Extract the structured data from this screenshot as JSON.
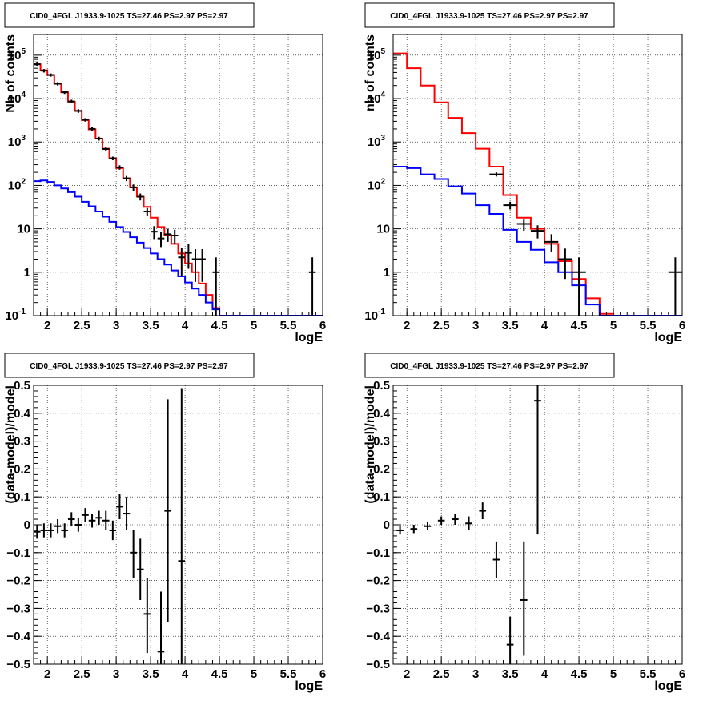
{
  "chart_data": [
    {
      "type": "line",
      "title": "CID0_4FGL J1933.9-1025 TS=27.46 PS=2.97 PS=2.97",
      "xlabel": "logE",
      "ylabel": "Nb of counts",
      "xlim": [
        1.8,
        6.0
      ],
      "ylim": [
        0.1,
        300000
      ],
      "yscale": "log",
      "grid": true,
      "x_ticks": [
        "2",
        "2.5",
        "3",
        "3.5",
        "4",
        "4.5",
        "5",
        "5.5",
        "6"
      ],
      "y_ticks": [
        "10^-1",
        "1",
        "10",
        "10^2",
        "10^3",
        "10^4",
        "10^5"
      ],
      "bin_edges": [
        1.8,
        1.9,
        2.0,
        2.1,
        2.2,
        2.3,
        2.4,
        2.5,
        2.6,
        2.7,
        2.8,
        2.9,
        3.0,
        3.1,
        3.2,
        3.3,
        3.4,
        3.5,
        3.6,
        3.7,
        3.8,
        3.9,
        4.0,
        4.1,
        4.2,
        4.3,
        4.4,
        4.5,
        4.6,
        4.7,
        4.8,
        4.9,
        5.0,
        5.1,
        5.2,
        5.3,
        5.4,
        5.5,
        5.6,
        5.7,
        5.8,
        5.9,
        6.0
      ],
      "series": [
        {
          "color": "#ff0000",
          "values": [
            62000,
            45000,
            35000,
            22000,
            14000,
            8500,
            5200,
            3200,
            1950,
            1200,
            700,
            420,
            250,
            145,
            90,
            55,
            32,
            18,
            11,
            7.2,
            4.5,
            2.7,
            1.6,
            1,
            0.55,
            0.3,
            0.15,
            0.1,
            0.1,
            0.1,
            0.1,
            0.1,
            0.1,
            0.1,
            0.1,
            0.1,
            0.1,
            0.1,
            0.1,
            0.1,
            0.1,
            0.1
          ]
        },
        {
          "color": "#0000ff",
          "values": [
            125,
            130,
            120,
            100,
            85,
            70,
            55,
            42,
            33,
            25,
            19,
            14.5,
            11,
            8.5,
            6.4,
            4.8,
            3.6,
            2.7,
            2.0,
            1.5,
            1.1,
            0.8,
            0.58,
            0.42,
            0.3,
            0.2,
            0.14,
            0.1,
            0.1,
            0.1,
            0.1,
            0.1,
            0.1,
            0.1,
            0.1,
            0.1,
            0.1,
            0.1,
            0.1,
            0.1,
            0.1,
            0.1
          ]
        }
      ],
      "points": [
        {
          "x": 1.85,
          "y": 62000,
          "lo": 56000,
          "hi": 68000
        },
        {
          "x": 1.95,
          "y": 44000,
          "lo": 40000,
          "hi": 48000
        },
        {
          "x": 2.05,
          "y": 35000,
          "lo": 32000,
          "hi": 38000
        },
        {
          "x": 2.15,
          "y": 22000,
          "lo": 20000,
          "hi": 24000
        },
        {
          "x": 2.25,
          "y": 14000,
          "lo": 12800,
          "hi": 15200
        },
        {
          "x": 2.35,
          "y": 8600,
          "lo": 7800,
          "hi": 9400
        },
        {
          "x": 2.45,
          "y": 5200,
          "lo": 4700,
          "hi": 5700
        },
        {
          "x": 2.55,
          "y": 3250,
          "lo": 2950,
          "hi": 3550
        },
        {
          "x": 2.65,
          "y": 2000,
          "lo": 1800,
          "hi": 2200
        },
        {
          "x": 2.75,
          "y": 1200,
          "lo": 1080,
          "hi": 1320
        },
        {
          "x": 2.85,
          "y": 690,
          "lo": 620,
          "hi": 760
        },
        {
          "x": 2.95,
          "y": 420,
          "lo": 380,
          "hi": 460
        },
        {
          "x": 3.05,
          "y": 260,
          "lo": 230,
          "hi": 290
        },
        {
          "x": 3.15,
          "y": 145,
          "lo": 125,
          "hi": 165
        },
        {
          "x": 3.25,
          "y": 90,
          "lo": 75,
          "hi": 105
        },
        {
          "x": 3.35,
          "y": 55,
          "lo": 45,
          "hi": 65
        },
        {
          "x": 3.45,
          "y": 25,
          "lo": 20,
          "hi": 30
        },
        {
          "x": 3.55,
          "y": 8.6,
          "lo": 5.8,
          "hi": 11.5
        },
        {
          "x": 3.65,
          "y": 6,
          "lo": 3.8,
          "hi": 8.5
        },
        {
          "x": 3.75,
          "y": 7.5,
          "lo": 5,
          "hi": 10
        },
        {
          "x": 3.85,
          "y": 7,
          "lo": 4.5,
          "hi": 9.5
        },
        {
          "x": 3.95,
          "y": 2.2,
          "lo": 0.8,
          "hi": 3.6
        },
        {
          "x": 4.05,
          "y": 2.8,
          "lo": 1.2,
          "hi": 4.5
        },
        {
          "x": 4.15,
          "y": 2,
          "lo": 0.6,
          "hi": 3.4
        },
        {
          "x": 4.25,
          "y": 2,
          "lo": 0.6,
          "hi": 3.4
        },
        {
          "x": 4.45,
          "y": 1,
          "lo": 0.1,
          "hi": 2.2
        },
        {
          "x": 5.85,
          "y": 1,
          "lo": 0.1,
          "hi": 2.2
        }
      ]
    },
    {
      "type": "line",
      "title": "CID0_4FGL J1933.9-1025 TS=27.46 PS=2.97 PS=2.97",
      "xlabel": "logE",
      "ylabel": "nb of counts",
      "xlim": [
        1.8,
        6.0
      ],
      "ylim": [
        0.1,
        300000
      ],
      "yscale": "log",
      "grid": true,
      "x_ticks": [
        "2",
        "2.5",
        "3",
        "3.5",
        "4",
        "4.5",
        "5",
        "5.5",
        "6"
      ],
      "y_ticks": [
        "10^-1",
        "1",
        "10",
        "10^2",
        "10^3",
        "10^4",
        "10^5"
      ],
      "bin_edges": [
        1.8,
        2.0,
        2.2,
        2.4,
        2.6,
        2.8,
        3.0,
        3.2,
        3.4,
        3.6,
        3.8,
        4.0,
        4.2,
        4.4,
        4.6,
        4.8,
        5.0,
        5.2,
        5.4,
        5.6,
        5.8,
        6.0
      ],
      "series": [
        {
          "color": "#ff0000",
          "values": [
            110000,
            50000,
            20000,
            8200,
            3600,
            1600,
            700,
            270,
            60,
            18,
            10,
            4.5,
            1.8,
            0.7,
            0.25,
            0.11,
            0.1,
            0.1,
            0.1,
            0.1,
            0.1
          ]
        },
        {
          "color": "#0000ff",
          "values": [
            270,
            250,
            180,
            140,
            95,
            65,
            35,
            22,
            9.5,
            5,
            3.3,
            1.7,
            1,
            0.5,
            0.18,
            0.1,
            0.1,
            0.1,
            0.1,
            0.1,
            0.1
          ]
        }
      ],
      "points": [
        {
          "x": 3.3,
          "y": 180,
          "lo": 160,
          "hi": 200
        },
        {
          "x": 3.5,
          "y": 35,
          "lo": 28,
          "hi": 42
        },
        {
          "x": 3.7,
          "y": 13,
          "lo": 9,
          "hi": 17
        },
        {
          "x": 3.9,
          "y": 9,
          "lo": 6,
          "hi": 12
        },
        {
          "x": 4.1,
          "y": 5,
          "lo": 3,
          "hi": 7.5
        },
        {
          "x": 4.3,
          "y": 2,
          "lo": 0.7,
          "hi": 3.5
        },
        {
          "x": 4.5,
          "y": 1,
          "lo": 0.1,
          "hi": 2.2
        },
        {
          "x": 5.9,
          "y": 1,
          "lo": 0.1,
          "hi": 2.2
        }
      ]
    },
    {
      "type": "scatter",
      "title": "CID0_4FGL J1933.9-1025 TS=27.46 PS=2.97 PS=2.97",
      "xlabel": "logE",
      "ylabel": "(data-model)/model",
      "xlim": [
        1.8,
        6.0
      ],
      "ylim": [
        -0.5,
        0.5
      ],
      "grid": true,
      "x_ticks": [
        "2",
        "2.5",
        "3",
        "3.5",
        "4",
        "4.5",
        "5",
        "5.5",
        "6"
      ],
      "y_ticks": [
        "-0.5",
        "-0.4",
        "-0.3",
        "-0.2",
        "-0.1",
        "0",
        "0.1",
        "0.2",
        "0.3",
        "0.4",
        "0.5"
      ],
      "points": [
        {
          "x": 1.85,
          "y": -0.025,
          "lo": -0.05,
          "hi": 0.0
        },
        {
          "x": 1.95,
          "y": -0.02,
          "lo": -0.045,
          "hi": 0.005
        },
        {
          "x": 2.05,
          "y": -0.02,
          "lo": -0.045,
          "hi": 0.005
        },
        {
          "x": 2.15,
          "y": -0.005,
          "lo": -0.03,
          "hi": 0.02
        },
        {
          "x": 2.25,
          "y": -0.02,
          "lo": -0.045,
          "hi": 0.005
        },
        {
          "x": 2.35,
          "y": 0.02,
          "lo": -0.005,
          "hi": 0.045
        },
        {
          "x": 2.45,
          "y": 0.0,
          "lo": -0.025,
          "hi": 0.025
        },
        {
          "x": 2.55,
          "y": 0.035,
          "lo": 0.01,
          "hi": 0.06
        },
        {
          "x": 2.65,
          "y": 0.015,
          "lo": -0.01,
          "hi": 0.04
        },
        {
          "x": 2.75,
          "y": 0.025,
          "lo": 0.0,
          "hi": 0.05
        },
        {
          "x": 2.85,
          "y": 0.015,
          "lo": -0.02,
          "hi": 0.05
        },
        {
          "x": 2.95,
          "y": -0.02,
          "lo": -0.055,
          "hi": 0.015
        },
        {
          "x": 3.05,
          "y": 0.065,
          "lo": 0.02,
          "hi": 0.11
        },
        {
          "x": 3.15,
          "y": 0.04,
          "lo": -0.02,
          "hi": 0.1
        },
        {
          "x": 3.25,
          "y": -0.1,
          "lo": -0.19,
          "hi": -0.02
        },
        {
          "x": 3.35,
          "y": -0.16,
          "lo": -0.27,
          "hi": -0.05
        },
        {
          "x": 3.45,
          "y": -0.32,
          "lo": -0.46,
          "hi": -0.19
        },
        {
          "x": 3.65,
          "y": -0.455,
          "lo": -0.5,
          "hi": -0.24
        },
        {
          "x": 3.75,
          "y": 0.05,
          "lo": -0.35,
          "hi": 0.45
        },
        {
          "x": 3.95,
          "y": -0.13,
          "lo": -0.5,
          "hi": 0.49
        }
      ]
    },
    {
      "type": "scatter",
      "title": "CID0_4FGL J1933.9-1025 TS=27.46 PS=2.97 PS=2.97",
      "xlabel": "logE",
      "ylabel": "(data-model)/model",
      "xlim": [
        1.8,
        6.0
      ],
      "ylim": [
        -0.5,
        0.5
      ],
      "grid": true,
      "x_ticks": [
        "2",
        "2.5",
        "3",
        "3.5",
        "4",
        "4.5",
        "5",
        "5.5",
        "6"
      ],
      "y_ticks": [
        "-0.5",
        "-0.4",
        "-0.3",
        "-0.2",
        "-0.1",
        "0",
        "0.1",
        "0.2",
        "0.3",
        "0.4",
        "0.5"
      ],
      "points": [
        {
          "x": 1.9,
          "y": -0.02,
          "lo": -0.035,
          "hi": -0.005
        },
        {
          "x": 2.1,
          "y": -0.015,
          "lo": -0.03,
          "hi": 0.0
        },
        {
          "x": 2.3,
          "y": -0.005,
          "lo": -0.02,
          "hi": 0.01
        },
        {
          "x": 2.5,
          "y": 0.015,
          "lo": 0.0,
          "hi": 0.03
        },
        {
          "x": 2.7,
          "y": 0.02,
          "lo": 0.0,
          "hi": 0.04
        },
        {
          "x": 2.9,
          "y": 0.005,
          "lo": -0.02,
          "hi": 0.03
        },
        {
          "x": 3.1,
          "y": 0.05,
          "lo": 0.02,
          "hi": 0.08
        },
        {
          "x": 3.3,
          "y": -0.125,
          "lo": -0.19,
          "hi": -0.06
        },
        {
          "x": 3.5,
          "y": -0.43,
          "lo": -0.5,
          "hi": -0.33
        },
        {
          "x": 3.7,
          "y": -0.27,
          "lo": -0.47,
          "hi": -0.06
        },
        {
          "x": 3.9,
          "y": 0.445,
          "lo": -0.035,
          "hi": 0.5
        }
      ]
    }
  ]
}
